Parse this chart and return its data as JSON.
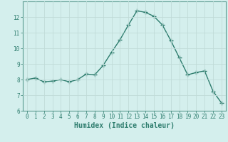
{
  "x": [
    0,
    1,
    2,
    3,
    4,
    5,
    6,
    7,
    8,
    9,
    10,
    11,
    12,
    13,
    14,
    15,
    16,
    17,
    18,
    19,
    20,
    21,
    22,
    23
  ],
  "y": [
    8.0,
    8.1,
    7.85,
    7.9,
    8.0,
    7.85,
    8.0,
    8.35,
    8.3,
    8.9,
    9.75,
    10.55,
    11.5,
    12.4,
    12.3,
    12.05,
    11.5,
    10.5,
    9.4,
    8.3,
    8.45,
    8.55,
    7.25,
    6.5
  ],
  "line_color": "#2e7d6e",
  "marker": "+",
  "marker_size": 4,
  "line_width": 1.0,
  "xlabel": "Humidex (Indice chaleur)",
  "xlabel_fontsize": 7,
  "ylim": [
    6,
    13
  ],
  "xlim": [
    -0.5,
    23.5
  ],
  "yticks": [
    6,
    7,
    8,
    9,
    10,
    11,
    12
  ],
  "xticks": [
    0,
    1,
    2,
    3,
    4,
    5,
    6,
    7,
    8,
    9,
    10,
    11,
    12,
    13,
    14,
    15,
    16,
    17,
    18,
    19,
    20,
    21,
    22,
    23
  ],
  "tick_fontsize": 5.5,
  "background_color": "#d4efed",
  "grid_color": "#c0dbd8",
  "grid_linestyle": "-",
  "grid_linewidth": 0.6,
  "spine_color": "#5a9a90"
}
